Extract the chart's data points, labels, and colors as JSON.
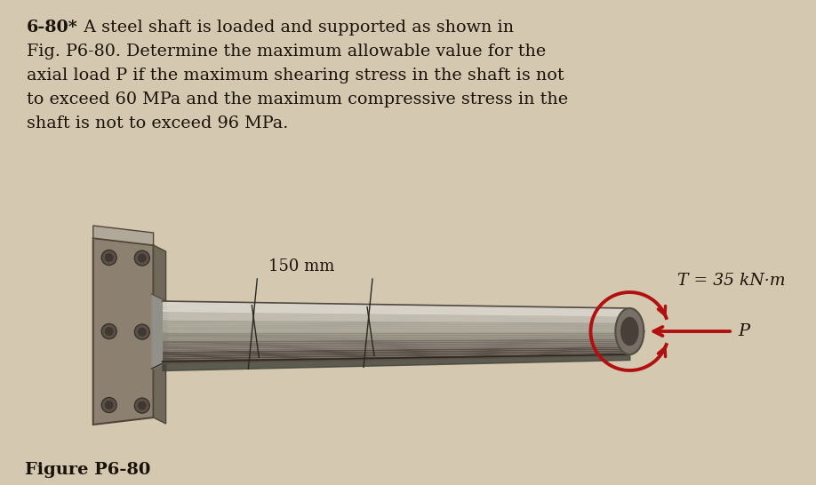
{
  "bg_color": "#d4c9b0",
  "text_color": "#1a1208",
  "title_line1": "6-80*  A steel shaft is loaded and supported as shown in",
  "title_line2": "Fig. P6-80. Determine the maximum allowable value for the",
  "title_line3": "axial load P if the maximum shearing stress in the shaft is not",
  "title_line4": "to exceed 60 MPa and the maximum compressive stress in the",
  "title_line5": "shaft is not to exceed 96 MPa.",
  "figure_label": "Figure P6-80",
  "dim_label": "150 mm",
  "torque_label": "T = 35 kN·m",
  "force_label": "P",
  "red_color": "#b01010",
  "wall_face_color": "#8c8070",
  "wall_edge_color": "#504538",
  "wall_side_color": "#706050",
  "shaft_top_color": "#d0ccc0",
  "shaft_mid_color": "#989080",
  "shaft_bot_color": "#585048",
  "shaft_end_color": "#706860",
  "shaft_end_dark": "#403830"
}
